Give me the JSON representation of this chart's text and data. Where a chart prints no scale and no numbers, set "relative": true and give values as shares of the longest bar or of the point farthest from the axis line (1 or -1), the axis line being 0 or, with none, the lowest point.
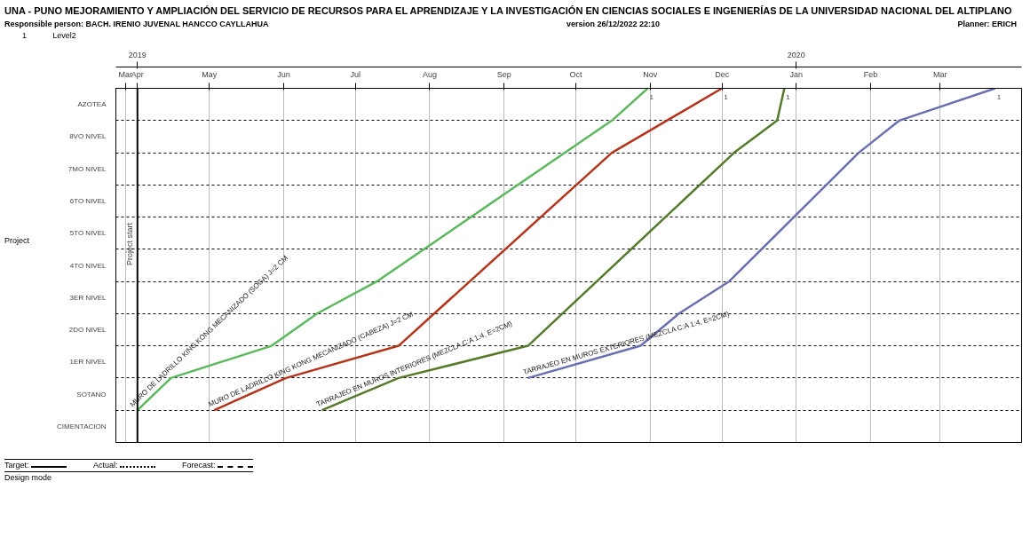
{
  "chart_data": {
    "type": "line",
    "title": "UNA - PUNO MEJORAMIENTO Y AMPLIACIÓN DEL SERVICIO DE RECURSOS PARA EL APRENDIZAJE Y LA INVESTIGACIÓN EN CIENCIAS SOCIALES E INGENIERÍAS DE LA UNIVERSIDAD NACIONAL DEL ALTIPLANO",
    "subtitle": "Responsible person: BACH. IRENIO JUVENAL HANCCO CAYLLAHUA",
    "annotations": [
      "version 26/12/2022 22:10",
      "Planner: ERICH",
      "1",
      "Level2",
      "Target:",
      "Actual:",
      "Forecast:",
      "Design mode",
      "Project",
      {
        "text": "1",
        "x": "2019-10-31",
        "y": 1
      },
      {
        "text": "1",
        "x": "2019-12-01",
        "y": 1
      },
      {
        "text": "1",
        "x": "2019-12-27",
        "y": 1
      },
      {
        "text": "1",
        "x": "2020-03-24",
        "y": 1
      }
    ],
    "relative": true,
    "y_categories": [
      "AZOTEA",
      "8VO NIVEL",
      "7MO NIVEL",
      "6TO NIVEL",
      "5TO NIVEL",
      "4TO NIVEL",
      "3ER NIVEL",
      "2DO NIVEL",
      "1ER NIVEL",
      "SOTANO",
      "CIMENTACION"
    ],
    "series": [
      {
        "name": "MURO DE LADRILLO KING KONG MECANIZADO (SOGA) J=2 CM",
        "color": "#5cb85c",
        "x": [
          "2019-04-01",
          "2019-04-15",
          "2019-05-27",
          "2019-06-15",
          "2019-07-10",
          "2019-10-16",
          "2019-10-31"
        ],
        "values": [
          0.091,
          0.182,
          0.273,
          0.364,
          0.455,
          0.909,
          1
        ]
      },
      {
        "name": "MURO DE LADRILLO KING KONG MECANIZADO (CABEZA) J=2 CM",
        "color": "#b5341c",
        "x": [
          "2019-05-03",
          "2019-06-02",
          "2019-07-19",
          "2019-10-16",
          "2019-12-01"
        ],
        "values": [
          0.091,
          0.182,
          0.273,
          0.818,
          1
        ]
      },
      {
        "name": "TARRAJEO EN MUROS INTERIORES (MEZCLA C:A 1:4, E=2CM)",
        "color": "#557a2c",
        "x": [
          "2019-06-17",
          "2019-07-19",
          "2019-09-11",
          "2019-12-06",
          "2019-12-24",
          "2019-12-27"
        ],
        "values": [
          0.091,
          0.182,
          0.273,
          0.818,
          0.909,
          1
        ]
      },
      {
        "name": "TARRAJEO EN MUROS EXTERIORES (MEZCLA C:A 1:4, E=2CM)",
        "color": "#6a6fb2",
        "x": [
          "2019-09-11",
          "2019-10-28",
          "2019-11-13",
          "2019-12-04",
          "2020-01-27",
          "2020-02-13",
          "2020-03-24"
        ],
        "values": [
          0.182,
          0.273,
          0.364,
          0.455,
          0.818,
          0.909,
          1
        ]
      }
    ],
    "xlim": [
      "2019-03-23",
      "2020-04-04"
    ],
    "xticks": [
      {
        "value": "2019-03-27",
        "label": "Mar"
      },
      {
        "value": "2019-04-01",
        "label": "Apr"
      },
      {
        "value": "2019-05-01",
        "label": "May"
      },
      {
        "value": "2019-06-01",
        "label": "Jun"
      },
      {
        "value": "2019-07-01",
        "label": "Jul"
      },
      {
        "value": "2019-08-01",
        "label": "Aug"
      },
      {
        "value": "2019-09-01",
        "label": "Sep"
      },
      {
        "value": "2019-10-01",
        "label": "Oct"
      },
      {
        "value": "2019-11-01",
        "label": "Nov"
      },
      {
        "value": "2019-12-01",
        "label": "Dec"
      },
      {
        "value": "2020-01-01",
        "label": "Jan"
      },
      {
        "value": "2020-02-01",
        "label": "Feb"
      },
      {
        "value": "2020-03-01",
        "label": "Mar"
      }
    ],
    "x2lim": [
      "2019-03-23",
      "2020-04-04"
    ],
    "x2ticks": [
      {
        "value": "2019-04-01",
        "label": "2019"
      },
      {
        "value": "2020-01-01",
        "label": "2020"
      }
    ],
    "ref_lines": [
      {
        "axis": "x",
        "value": "2019-04-01",
        "label": "Project start",
        "color": "#000000"
      }
    ],
    "grid": true,
    "line_style": "solid",
    "marker": "none"
  }
}
